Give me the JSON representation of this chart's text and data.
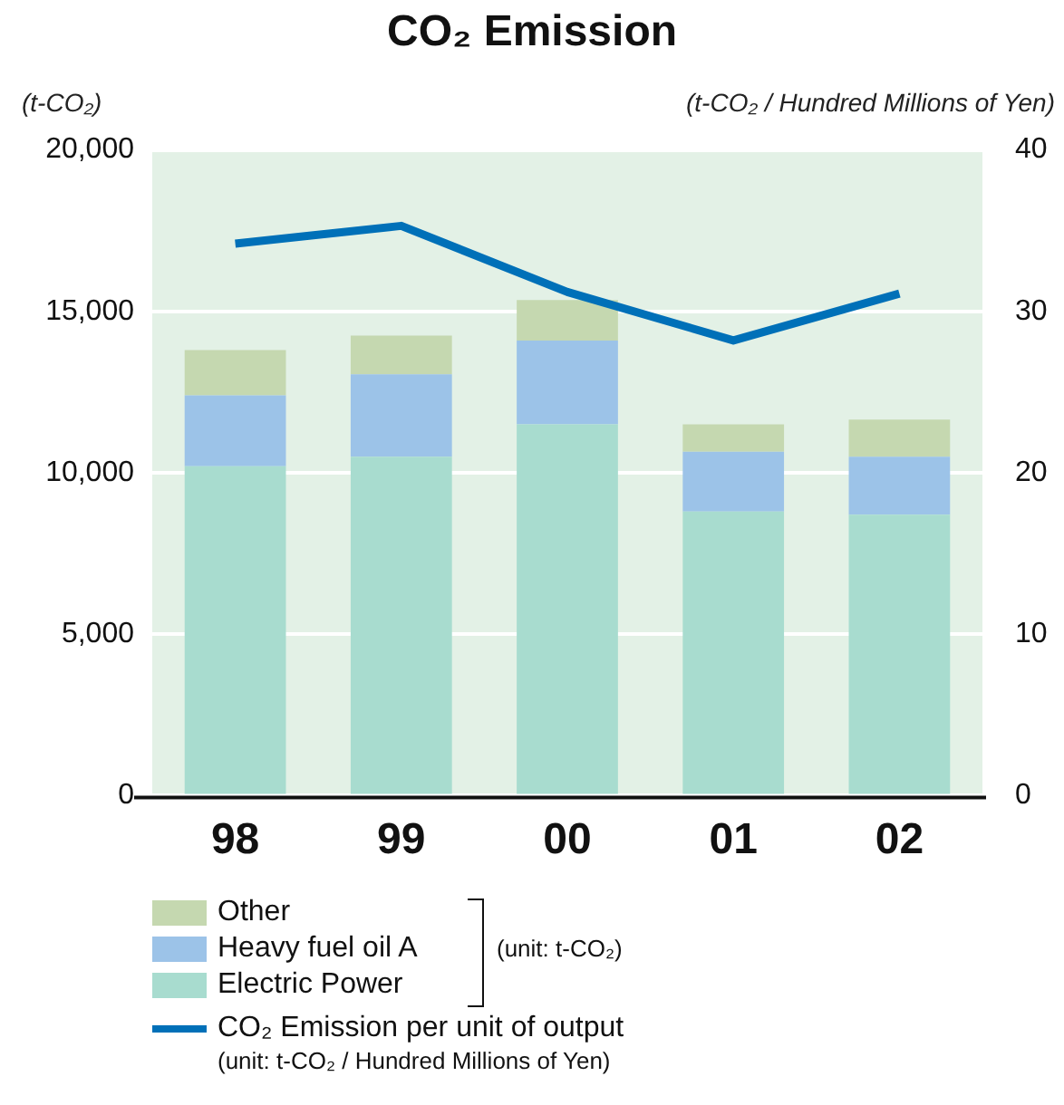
{
  "chart_data": {
    "type": "bar",
    "title": "CO₂ Emission",
    "ylabel": "(t-CO₂)",
    "y2label": "(t-CO₂ / Hundred Millions of Yen)",
    "categories": [
      "98",
      "99",
      "00",
      "01",
      "02"
    ],
    "stacked": true,
    "series": [
      {
        "name": "Electric Power",
        "color": "#a8dccf",
        "values": [
          10200,
          10500,
          11500,
          8800,
          8700
        ]
      },
      {
        "name": "Heavy fuel oil A",
        "color": "#9cc3e8",
        "values": [
          2200,
          2550,
          2600,
          1850,
          1800
        ]
      },
      {
        "name": "Other",
        "color": "#c5d8b0",
        "values": [
          1400,
          1200,
          1250,
          850,
          1150
        ]
      },
      {
        "name": "CO₂ Emission per unit of output",
        "type": "line",
        "axis": "y2",
        "color": "#0070b8",
        "values": [
          34.2,
          35.3,
          31.2,
          28.2,
          31.1
        ]
      }
    ],
    "ylim": [
      0,
      20000
    ],
    "yticks": [
      0,
      {
        "value": 5000,
        "label": "5,000"
      },
      {
        "value": 10000,
        "label": "10,000"
      },
      {
        "value": 15000,
        "label": "15,000"
      },
      {
        "value": 20000,
        "label": "20,000"
      }
    ],
    "y2lim": [
      0,
      40
    ],
    "y2ticks": [
      0,
      10,
      20,
      30,
      40
    ],
    "grid": "y",
    "legend": "bottom",
    "marker": "none",
    "annotations": [
      "(unit: t-CO₂)",
      "(unit: t-CO₂ / Hundred Millions of Yen)"
    ]
  }
}
